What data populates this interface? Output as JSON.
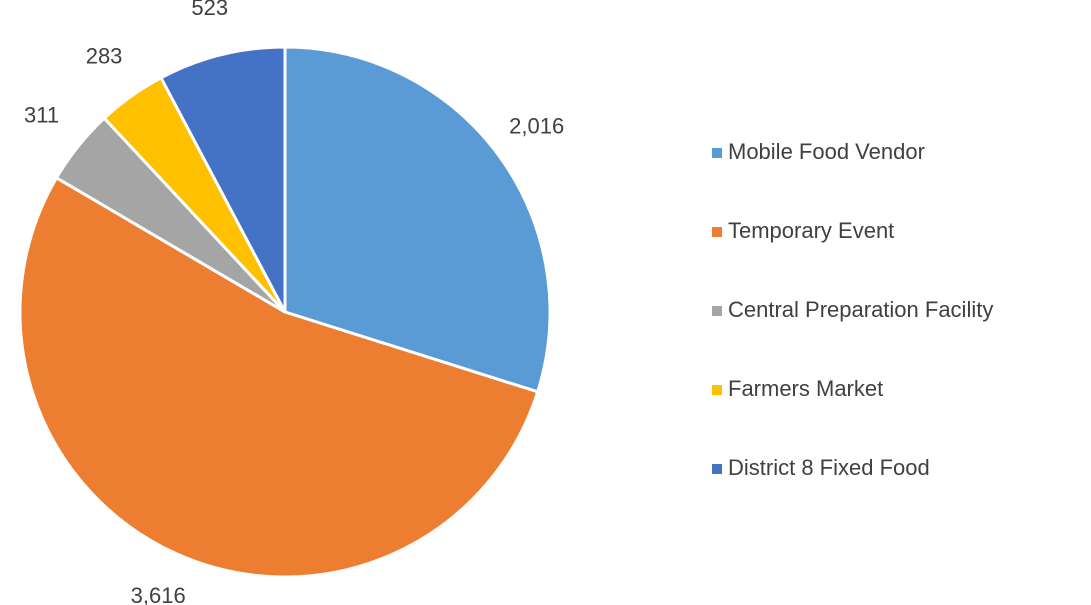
{
  "chart_data": {
    "type": "pie",
    "categories": [
      "Mobile Food Vendor",
      "Temporary Event",
      "Central Preparation Facility",
      "Farmers Market",
      "District 8 Fixed Food"
    ],
    "values": [
      2016,
      3616,
      311,
      283,
      523
    ],
    "value_labels": [
      "2,016",
      "3,616",
      "311",
      "283",
      "523"
    ],
    "colors": [
      "#5b9bd5",
      "#ed7d31",
      "#a5a5a5",
      "#ffc000",
      "#4472c4"
    ],
    "legend": "right"
  }
}
